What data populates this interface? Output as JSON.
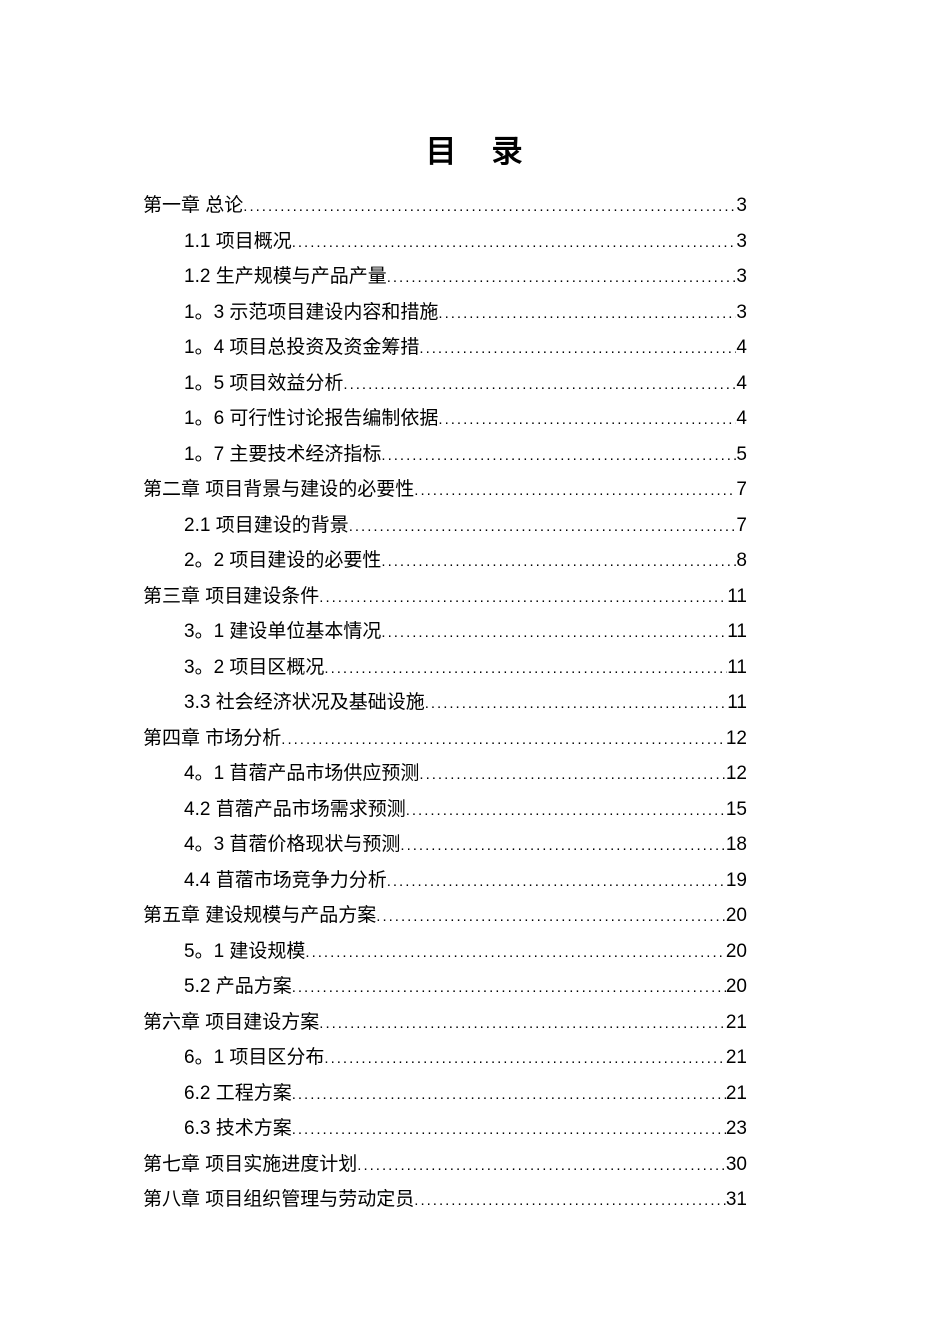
{
  "document": {
    "title": "目　录",
    "toc": [
      {
        "level": "chapter",
        "label": "第一章 总论",
        "page": "3"
      },
      {
        "level": "section",
        "label": "1.1 项目概况",
        "page": "3"
      },
      {
        "level": "section",
        "label": "1.2 生产规模与产品产量",
        "page": "3"
      },
      {
        "level": "section",
        "label": "1。3 示范项目建设内容和措施",
        "page": "3"
      },
      {
        "level": "section",
        "label": "1。4 项目总投资及资金筹措",
        "page": "4"
      },
      {
        "level": "section",
        "label": "1。5 项目效益分析",
        "page": "4"
      },
      {
        "level": "section",
        "label": "1。6 可行性讨论报告编制依据",
        "page": "4"
      },
      {
        "level": "section",
        "label": "1。7 主要技术经济指标",
        "page": "5"
      },
      {
        "level": "chapter",
        "label": "第二章 项目背景与建设的必要性",
        "page": "7"
      },
      {
        "level": "section",
        "label": "2.1 项目建设的背景",
        "page": "7"
      },
      {
        "level": "section",
        "label": "2。2 项目建设的必要性",
        "page": "8"
      },
      {
        "level": "chapter",
        "label": "第三章 项目建设条件",
        "page": "11"
      },
      {
        "level": "section",
        "label": "3。1 建设单位基本情况",
        "page": "11"
      },
      {
        "level": "section",
        "label": "3。2 项目区概况",
        "page": "11"
      },
      {
        "level": "section",
        "label": "3.3 社会经济状况及基础设施",
        "page": "11"
      },
      {
        "level": "chapter",
        "label": "第四章 市场分析",
        "page": "12"
      },
      {
        "level": "section",
        "label": "4。1 苜蓿产品市场供应预测",
        "page": "12"
      },
      {
        "level": "section",
        "label": "4.2 苜蓿产品市场需求预测",
        "page": "15"
      },
      {
        "level": "section",
        "label": "4。3 苜蓿价格现状与预测",
        "page": "18"
      },
      {
        "level": "section",
        "label": "4.4 苜蓿市场竞争力分析",
        "page": "19"
      },
      {
        "level": "chapter",
        "label": "第五章 建设规模与产品方案",
        "page": "20"
      },
      {
        "level": "section",
        "label": "5。1 建设规模",
        "page": "20"
      },
      {
        "level": "section",
        "label": "5.2 产品方案",
        "page": "20"
      },
      {
        "level": "chapter",
        "label": "第六章 项目建设方案",
        "page": "21"
      },
      {
        "level": "section",
        "label": "6。1 项目区分布",
        "page": "21"
      },
      {
        "level": "section",
        "label": "6.2 工程方案",
        "page": "21"
      },
      {
        "level": "section",
        "label": "6.3 技术方案",
        "page": "23"
      },
      {
        "level": "chapter",
        "label": "第七章 项目实施进度计划",
        "page": "30"
      },
      {
        "level": "chapter",
        "label": "第八章 项目组织管理与劳动定员",
        "page": "31"
      }
    ]
  }
}
